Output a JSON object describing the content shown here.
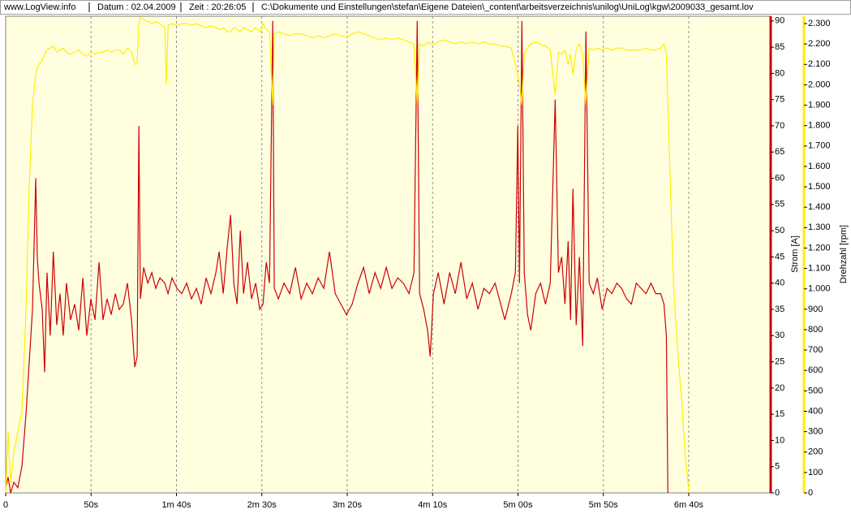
{
  "header": {
    "site": "www.LogView.info",
    "date": "Datum : 02.04.2009",
    "time": "Zeit : 20:26:05",
    "file": "C:\\Dokumente und Einstellungen\\stefan\\Eigene Dateien\\_content\\arbeitsverzeichnis\\unilog\\UniLog\\kgw\\2009033_gesamt.lov"
  },
  "chart_data": {
    "type": "line",
    "ylabel": "Strom [A]",
    "y2label": "Drehzahl [rpm]",
    "xlim": [
      0,
      448
    ],
    "xticks": [
      0,
      {
        "value": 50,
        "label": "50s"
      },
      {
        "value": 100,
        "label": "1m 40s"
      },
      {
        "value": 150,
        "label": "2m 30s"
      },
      {
        "value": 200,
        "label": "3m 20s"
      },
      {
        "value": 250,
        "label": "4m 10s"
      },
      {
        "value": 300,
        "label": "5m 00s"
      },
      {
        "value": 350,
        "label": "5m 50s"
      },
      {
        "value": 400,
        "label": "6m 40s"
      }
    ],
    "ylim": [
      0,
      90.9
    ],
    "yticks": [
      0,
      5,
      10,
      15,
      20,
      25,
      30,
      35,
      40,
      45,
      50,
      55,
      60,
      65,
      70,
      75,
      80,
      85,
      90
    ],
    "y2lim": [
      0,
      2336
    ],
    "y2ticks": [
      0,
      100,
      200,
      300,
      400,
      500,
      600,
      700,
      800,
      900,
      {
        "value": 1000,
        "label": "1.000"
      },
      {
        "value": 1100,
        "label": "1.100"
      },
      {
        "value": 1200,
        "label": "1.200"
      },
      {
        "value": 1300,
        "label": "1.300"
      },
      {
        "value": 1400,
        "label": "1.400"
      },
      {
        "value": 1500,
        "label": "1.500"
      },
      {
        "value": 1600,
        "label": "1.600"
      },
      {
        "value": 1700,
        "label": "1.700"
      },
      {
        "value": 1800,
        "label": "1.800"
      },
      {
        "value": 1900,
        "label": "1.900"
      },
      {
        "value": 2000,
        "label": "2.000"
      },
      {
        "value": 2100,
        "label": "2.100"
      },
      {
        "value": 2200,
        "label": "2.200"
      },
      {
        "value": 2300,
        "label": "2.300"
      }
    ],
    "grid": true,
    "x": [
      0.0,
      1.4,
      2.9,
      4.8,
      7.1,
      9.5,
      11.9,
      13.8,
      15.7,
      17.6,
      18.5,
      19.5,
      21.4,
      22.8,
      24.2,
      26.1,
      27.9,
      29.9,
      31.8,
      33.7,
      35.6,
      38.0,
      40.4,
      42.8,
      45.2,
      47.5,
      49.9,
      52.3,
      54.7,
      57.0,
      59.4,
      61.8,
      64.2,
      66.5,
      68.9,
      71.3,
      73.7,
      75.6,
      77.0,
      78.0,
      78.9,
      80.8,
      83.2,
      85.6,
      87.9,
      90.3,
      93.2,
      94.1,
      95.1,
      97.4,
      100.3,
      103.1,
      106.0,
      108.8,
      111.7,
      114.5,
      117.4,
      120.2,
      123.1,
      125.0,
      127.4,
      129.8,
      131.7,
      133.6,
      135.5,
      137.4,
      139.3,
      141.6,
      144.0,
      146.4,
      148.8,
      150.7,
      152.6,
      154.5,
      156.4,
      157.3,
      159.7,
      163.0,
      166.3,
      169.7,
      173.0,
      176.3,
      179.6,
      183.0,
      186.3,
      189.6,
      193.0,
      196.3,
      199.6,
      202.9,
      206.3,
      209.6,
      212.9,
      216.3,
      219.6,
      222.9,
      226.2,
      229.6,
      232.9,
      236.2,
      239.1,
      241.0,
      242.4,
      244.8,
      247.1,
      248.6,
      250.5,
      253.3,
      256.7,
      260.0,
      263.3,
      266.6,
      270.0,
      273.3,
      276.6,
      280.0,
      283.3,
      286.6,
      289.9,
      292.3,
      296.1,
      298.5,
      299.9,
      300.9,
      302.3,
      303.7,
      305.6,
      307.5,
      310.4,
      313.2,
      316.1,
      318.9,
      321.8,
      323.7,
      325.6,
      327.5,
      329.4,
      330.8,
      332.2,
      334.1,
      336.0,
      337.9,
      339.8,
      341.7,
      344.1,
      346.5,
      349.3,
      352.2,
      355.0,
      357.9,
      360.7,
      363.6,
      366.4,
      369.3,
      372.1,
      375.0,
      377.9,
      380.7,
      383.6,
      385.5,
      386.9,
      387.8,
      389.3,
      391.2,
      393.5,
      395.9,
      397.8,
      400.2
    ],
    "series": [
      {
        "color": "#cc0000",
        "values": [
          1,
          3,
          0,
          2,
          1,
          5,
          15,
          25,
          35,
          60,
          45,
          40,
          35,
          23,
          42,
          30,
          46,
          32,
          38,
          30,
          40,
          33,
          36,
          31,
          41,
          30,
          37,
          33,
          44,
          33,
          37,
          34,
          38,
          35,
          36,
          40,
          33,
          24,
          26,
          70,
          37,
          43,
          40,
          42,
          39,
          41,
          40,
          39,
          38,
          41,
          39,
          38,
          40,
          37,
          39,
          36,
          41,
          38,
          42,
          46,
          38,
          47,
          53,
          40,
          36,
          50,
          38,
          44,
          37,
          40,
          35,
          36,
          44,
          40,
          90,
          39,
          37,
          40,
          38,
          43,
          37,
          40,
          38,
          41,
          39,
          46,
          38,
          36,
          34,
          36,
          40,
          43,
          38,
          42,
          39,
          43,
          39,
          41,
          40,
          38,
          42,
          90,
          38,
          35,
          31,
          26,
          38,
          42,
          36,
          42,
          38,
          44,
          37,
          40,
          35,
          39,
          38,
          40,
          36,
          33,
          38,
          42,
          70,
          40,
          90,
          42,
          34,
          31,
          38,
          40,
          36,
          40,
          75,
          42,
          45,
          36,
          48,
          33,
          58,
          32,
          45,
          28,
          88,
          40,
          38,
          41,
          35,
          39,
          38,
          40,
          39,
          37,
          36,
          40,
          39,
          38,
          40,
          38,
          38,
          36,
          30,
          0,
          null,
          null,
          null,
          null,
          null,
          null
        ]
      },
      {
        "color": "#ffee00",
        "axis": "y2",
        "values": [
          0,
          300,
          50,
          200,
          300,
          400,
          900,
          1500,
          1900,
          2050,
          2080,
          2100,
          2120,
          2150,
          2170,
          2180,
          2190,
          2160,
          2170,
          2180,
          2160,
          2150,
          2160,
          2170,
          2150,
          2140,
          2160,
          2150,
          2160,
          2160,
          2170,
          2160,
          2170,
          2170,
          2150,
          2180,
          2160,
          2100,
          2110,
          2300,
          2330,
          2320,
          2310,
          2300,
          2310,
          2300,
          2280,
          2000,
          2290,
          2300,
          2290,
          2300,
          2300,
          2290,
          2300,
          2290,
          2280,
          2290,
          2280,
          2270,
          2280,
          2260,
          2260,
          2280,
          2270,
          2260,
          2280,
          2270,
          2260,
          2280,
          2260,
          2300,
          2270,
          2260,
          1900,
          2250,
          2260,
          2250,
          2240,
          2250,
          2250,
          2240,
          2230,
          2240,
          2230,
          2240,
          2250,
          2240,
          2230,
          2250,
          2260,
          2250,
          2240,
          2230,
          2220,
          2230,
          2220,
          2230,
          2220,
          2210,
          2200,
          1900,
          2200,
          2190,
          2210,
          2200,
          2200,
          2210,
          2220,
          2210,
          2200,
          2210,
          2200,
          2210,
          2200,
          2210,
          2200,
          2200,
          2190,
          2190,
          2180,
          2100,
          2050,
          2000,
          1900,
          2150,
          2180,
          2200,
          2210,
          2200,
          2190,
          2170,
          1950,
          2160,
          2150,
          2170,
          2100,
          2150,
          2050,
          2170,
          2200,
          2150,
          1900,
          2180,
          2170,
          2180,
          2170,
          2180,
          2170,
          2180,
          2180,
          2170,
          2170,
          2170,
          2170,
          2180,
          2170,
          2170,
          2180,
          2200,
          2150,
          1900,
          1500,
          1000,
          700,
          450,
          200,
          0
        ]
      }
    ]
  }
}
